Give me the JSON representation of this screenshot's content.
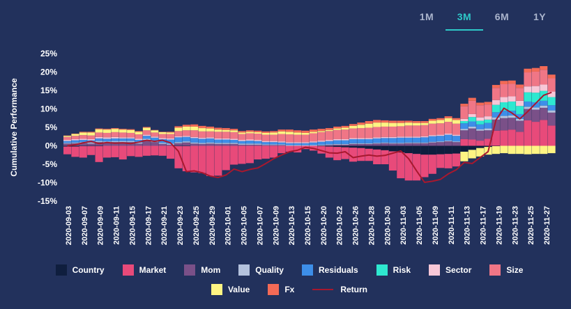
{
  "range_tabs": [
    {
      "label": "1M",
      "active": false
    },
    {
      "label": "3M",
      "active": true
    },
    {
      "label": "6M",
      "active": false
    },
    {
      "label": "1Y",
      "active": false
    }
  ],
  "chart_data": {
    "type": "area",
    "stacked": true,
    "ylabel": "Cumulative Performance",
    "xlabel": "",
    "ylim": [
      -15,
      25
    ],
    "yticks": [
      "-15%",
      "-10%",
      "-5%",
      "0%",
      "5%",
      "10%",
      "15%",
      "20%",
      "25%"
    ],
    "xtick_labels": [
      "2020-09-03",
      "2020-09-07",
      "2020-09-09",
      "2020-09-11",
      "2020-09-15",
      "2020-09-17",
      "2020-09-21",
      "2020-09-23",
      "2020-09-25",
      "2020-09-29",
      "2020-10-01",
      "2020-10-05",
      "2020-10-07",
      "2020-10-09",
      "2020-10-13",
      "2020-10-15",
      "2020-10-20",
      "2020-10-22",
      "2020-10-26",
      "2020-10-28",
      "2020-10-30",
      "2020-11-03",
      "2020-11-05",
      "2020-11-09",
      "2020-11-11",
      "2020-11-13",
      "2020-11-17",
      "2020-11-19",
      "2020-11-23",
      "2020-11-25",
      "2020-11-27"
    ],
    "n_points": 62,
    "series": [
      {
        "name": "Country",
        "color": "#0f1e3e",
        "kind": "area",
        "values": [
          -0.2,
          -0.2,
          -0.1,
          -0.1,
          -0.1,
          0,
          0,
          0,
          0,
          0,
          0,
          0,
          0,
          0,
          -0.1,
          -0.1,
          0,
          0,
          0,
          0,
          0,
          0,
          0,
          0,
          0,
          0,
          0,
          0,
          0,
          0,
          0,
          0,
          -0.1,
          -0.2,
          -0.3,
          -0.4,
          -0.5,
          -0.6,
          -0.8,
          -1,
          -1.2,
          -1.5,
          -1.8,
          -2,
          -2.2,
          -2.4,
          -2.4,
          -2.3,
          -2.2,
          -2.1,
          -1.6,
          -1.1,
          -0.6,
          -0.3,
          -0.1,
          0,
          0,
          0,
          0,
          0,
          0,
          0
        ]
      },
      {
        "name": "Market",
        "color": "#e84a7a",
        "kind": "area",
        "values": [
          -2.1,
          -2.8,
          -3.1,
          -2.4,
          -4.3,
          -3.2,
          -3.1,
          -3.7,
          -2.8,
          -3,
          -2.7,
          -2.6,
          -2.7,
          -3.5,
          -6,
          -6.8,
          -7.2,
          -7.4,
          -8.2,
          -8.1,
          -6.6,
          -5.1,
          -4.9,
          -4.7,
          -3.7,
          -3.5,
          -3.2,
          -2,
          -1.6,
          -1.8,
          -0.9,
          -1.3,
          -2,
          -3,
          -3.6,
          -3.2,
          -3.8,
          -3.5,
          -3.3,
          -4,
          -3.8,
          -5.2,
          -7,
          -7.4,
          -7.2,
          -6.1,
          -5.2,
          -3.7,
          -3.9,
          -3.5,
          1.8,
          1.7,
          1.4,
          1.9,
          4.1,
          4.2,
          4.4,
          3.8,
          6.9,
          6.5,
          7,
          5.5
        ]
      },
      {
        "name": "Mom",
        "color": "#7a5088",
        "kind": "area",
        "values": [
          0.6,
          0.7,
          0.7,
          0.6,
          1,
          0.9,
          1,
          1,
          1,
          0.6,
          1.6,
          1,
          0.5,
          0.3,
          0.7,
          0.9,
          0.6,
          0.5,
          0.6,
          0.5,
          0.5,
          0.5,
          0.3,
          0.3,
          0.3,
          0.2,
          0.2,
          0.2,
          0,
          0,
          0,
          0,
          0.1,
          0.2,
          0.3,
          0.3,
          0.5,
          0.5,
          0.5,
          0.6,
          0.7,
          0.6,
          0.6,
          0.7,
          0.7,
          0.7,
          0.9,
          1,
          1.2,
          1,
          2.4,
          3,
          2.7,
          2.3,
          3,
          3.3,
          3.2,
          3,
          3.1,
          3.3,
          3.3,
          3.5
        ]
      },
      {
        "name": "Quality",
        "color": "#b4c2dd",
        "kind": "area",
        "values": [
          0.2,
          0.2,
          0.3,
          0.3,
          0.3,
          0.3,
          0.3,
          0.3,
          0.3,
          0.3,
          0.3,
          0.3,
          0.3,
          0.3,
          0.3,
          0.3,
          0.3,
          0.3,
          0.3,
          0.3,
          0.3,
          0.3,
          0.3,
          0.3,
          0.3,
          0.2,
          0.2,
          0.2,
          0.2,
          0.2,
          0.2,
          0.2,
          0.2,
          0.2,
          0.2,
          0.2,
          0.2,
          0.2,
          0.2,
          0.2,
          0.2,
          0.2,
          0.2,
          0.2,
          0.2,
          0.2,
          0.2,
          0.2,
          0.2,
          0.2,
          0.4,
          0.5,
          0.4,
          0.5,
          0.6,
          0.6,
          0.6,
          0.5,
          0.6,
          0.6,
          0.6,
          0.6
        ]
      },
      {
        "name": "Residuals",
        "color": "#3d8ee8",
        "kind": "area",
        "values": [
          0.5,
          0.6,
          0.6,
          0.6,
          0.7,
          0.7,
          0.7,
          0.7,
          0.7,
          0.7,
          0.8,
          0.9,
          1,
          1.1,
          1.3,
          1.2,
          1.2,
          1.1,
          1.1,
          0.9,
          0.9,
          0.8,
          0.7,
          0.8,
          0.7,
          0.6,
          0.6,
          0.5,
          0.5,
          0.5,
          0.5,
          0.7,
          0.8,
          0.9,
          1,
          1,
          1.1,
          1.1,
          1.1,
          1.2,
          1.2,
          1.3,
          1.4,
          1.3,
          1.3,
          1.4,
          1.5,
          1.5,
          1.6,
          1.5,
          1.5,
          1.4,
          1.3,
          1.5,
          1.4,
          1.4,
          1.3,
          1.3,
          1.4,
          1.4,
          1.3,
          1.4
        ]
      },
      {
        "name": "Risk",
        "color": "#2ee8d0",
        "kind": "area",
        "values": [
          0,
          0,
          0,
          0,
          0,
          0,
          0,
          0,
          0,
          0,
          0,
          0,
          0,
          0,
          0,
          0,
          0,
          0,
          0,
          0,
          0,
          0,
          0,
          0,
          0,
          0,
          0,
          0,
          0,
          0,
          0,
          0,
          0,
          0,
          0,
          0,
          0,
          0,
          0,
          0,
          0,
          0,
          0,
          0,
          0,
          0,
          0,
          0,
          0,
          0,
          0.6,
          1.2,
          1,
          0.9,
          2,
          2.3,
          2.5,
          2.2,
          2.5,
          2.6,
          2.7,
          2.2
        ]
      },
      {
        "name": "Sector",
        "color": "#f7c7d7",
        "kind": "area",
        "values": [
          0.3,
          0.3,
          0.3,
          0.3,
          0.4,
          0.4,
          0.4,
          0.3,
          0.3,
          0.3,
          0.3,
          0.3,
          0.3,
          0.3,
          0.3,
          0.3,
          0.3,
          0.3,
          0.3,
          0.3,
          0.3,
          0.3,
          0.3,
          0.3,
          0.3,
          0.3,
          0.3,
          0.3,
          0.3,
          0.3,
          0.3,
          0.3,
          0.3,
          0.3,
          0.3,
          0.3,
          0.3,
          0.3,
          0.3,
          0.3,
          0.3,
          0.3,
          0.3,
          0.3,
          0.3,
          0.3,
          0.3,
          0.3,
          0.3,
          0.3,
          0.6,
          0.8,
          0.9,
          0.9,
          1.3,
          1.4,
          1.4,
          1.4,
          1.6,
          1.8,
          1.7,
          1.5
        ]
      },
      {
        "name": "Size",
        "color": "#f07686",
        "kind": "area",
        "values": [
          0.8,
          0.9,
          1,
          1,
          1.2,
          1.2,
          1.3,
          1.3,
          1.2,
          1.2,
          1.2,
          1.1,
          1.1,
          1.2,
          1.4,
          1.5,
          1.8,
          1.7,
          1.6,
          1.8,
          1.8,
          1.8,
          1.6,
          1.7,
          1.7,
          1.7,
          1.7,
          2,
          2.1,
          2,
          2,
          2.2,
          2.3,
          2.4,
          2.5,
          2.6,
          2.6,
          2.7,
          2.8,
          2.8,
          2.8,
          2.8,
          2.8,
          3,
          3,
          3,
          3.1,
          3.1,
          3.2,
          3,
          3.4,
          3.6,
          3.3,
          3.2,
          3.3,
          3.5,
          3.4,
          3.5,
          3.8,
          3.9,
          4,
          3.6
        ]
      },
      {
        "name": "Value",
        "color": "#fef483",
        "kind": "area",
        "values": [
          0.3,
          0.5,
          0.7,
          0.8,
          0.9,
          0.9,
          0.9,
          0.8,
          0.8,
          0.7,
          0.7,
          0.6,
          0.5,
          0.4,
          0.9,
          1,
          1,
          0.9,
          0.8,
          0.6,
          0.5,
          0.5,
          0.4,
          0.4,
          0.4,
          0.5,
          0.6,
          0.7,
          0.7,
          0.6,
          0.5,
          0.4,
          0.3,
          0.3,
          0.4,
          0.5,
          0.7,
          0.9,
          1.1,
          1.2,
          1.1,
          1,
          0.9,
          0.8,
          0.7,
          0.6,
          0.8,
          0.9,
          1,
          1,
          -2.6,
          -2.3,
          -2.3,
          -2.1,
          -2.1,
          -2,
          -2.2,
          -2.2,
          -2.3,
          -2.2,
          -2.2,
          -2.0
        ]
      },
      {
        "name": "Fx",
        "color": "#f36a56",
        "kind": "area",
        "values": [
          0.1,
          0.1,
          0.2,
          0.2,
          0.2,
          0.2,
          0.2,
          0.2,
          0.2,
          0.2,
          0.2,
          0.1,
          0.1,
          0.2,
          0.4,
          0.5,
          0.6,
          0.6,
          0.5,
          0.5,
          0.5,
          0.4,
          0.4,
          0.4,
          0.4,
          0.4,
          0.4,
          0.5,
          0.6,
          0.6,
          0.6,
          0.6,
          0.6,
          0.5,
          0.5,
          0.5,
          0.5,
          0.6,
          0.7,
          0.7,
          0.6,
          0.6,
          0.6,
          0.5,
          0.5,
          0.5,
          0.5,
          0.5,
          0.5,
          0.5,
          0.7,
          0.8,
          0.7,
          0.7,
          0.8,
          0.9,
          0.9,
          0.9,
          1,
          1,
          1,
          1
        ]
      },
      {
        "name": "Return",
        "color": "#a8182e",
        "kind": "line",
        "values": [
          0,
          0.3,
          0.8,
          1.2,
          0.6,
          0.9,
          0.7,
          0.8,
          0.6,
          1,
          1.5,
          1.2,
          1.5,
          0.8,
          -1.5,
          -7,
          -6.8,
          -7.3,
          -8.2,
          -8.6,
          -7.9,
          -6.3,
          -7,
          -6.4,
          -6,
          -4.8,
          -3.5,
          -2.5,
          -1.6,
          -1.2,
          -0.4,
          -0.7,
          -1.3,
          -1.9,
          -2,
          -1.6,
          -3.2,
          -2.8,
          -2.5,
          -2.8,
          -2.6,
          -2,
          -1.4,
          -3.5,
          -6.8,
          -9.9,
          -9.6,
          -9.1,
          -7.6,
          -6.5,
          -4.5,
          -4.8,
          -3.2,
          -1.6,
          7,
          10.2,
          8.9,
          7.3,
          9.3,
          11.5,
          13.7,
          14.5
        ]
      }
    ]
  }
}
